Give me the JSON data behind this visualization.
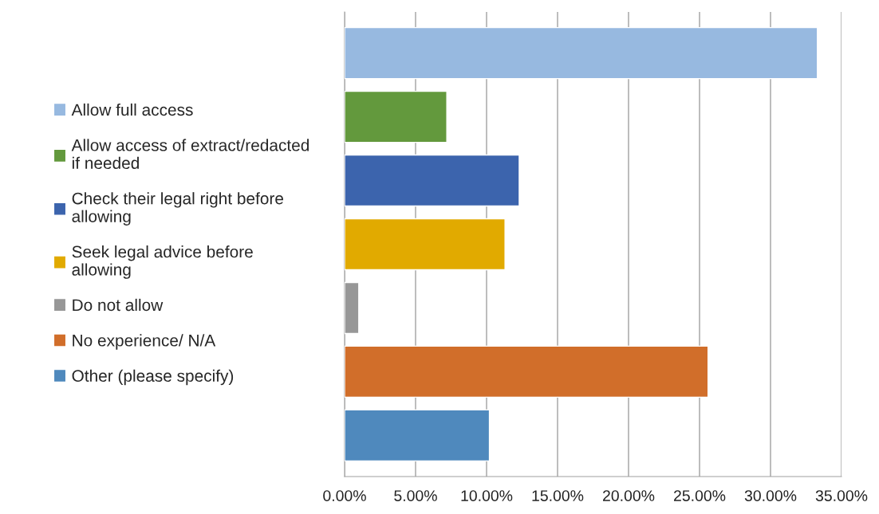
{
  "chart_data": {
    "type": "bar",
    "orientation": "horizontal",
    "categories": [
      null
    ],
    "series": [
      {
        "name": "Allow full access",
        "color": "#97b9e0",
        "values": [
          33.3
        ]
      },
      {
        "name": "Allow access of extract/redacted\nif needed",
        "color": "#63993d",
        "values": [
          7.2
        ]
      },
      {
        "name": "Check their legal right before\nallowing",
        "color": "#3c64ad",
        "values": [
          12.3
        ]
      },
      {
        "name": "Seek legal advice before\nallowing",
        "color": "#e1aa00",
        "values": [
          11.3
        ]
      },
      {
        "name": "Do not allow",
        "color": "#979797",
        "values": [
          1.0
        ]
      },
      {
        "name": "No experience/ N/A",
        "color": "#d16e2a",
        "values": [
          25.6
        ]
      },
      {
        "name": "Other (please specify)",
        "color": "#4f89bd",
        "values": [
          10.2
        ]
      }
    ],
    "xlim": [
      0,
      35
    ],
    "xticks": [
      {
        "value": 0,
        "label": "0.00%"
      },
      {
        "value": 5,
        "label": "5.00%"
      },
      {
        "value": 10,
        "label": "10.00%"
      },
      {
        "value": 15,
        "label": "15.00%"
      },
      {
        "value": 20,
        "label": "20.00%"
      },
      {
        "value": 25,
        "label": "25.00%"
      },
      {
        "value": 30,
        "label": "30.00%"
      },
      {
        "value": 35,
        "label": "35.00%"
      }
    ],
    "grid": "x",
    "legend": "left"
  }
}
